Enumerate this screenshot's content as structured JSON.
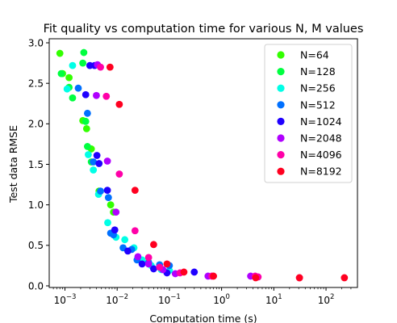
{
  "chart_data": {
    "type": "scatter",
    "title": "Fit quality vs computation time for various N, M values",
    "xlabel": "Computation time (s)",
    "ylabel": "Test data RMSE",
    "xscale": "log",
    "xlim": [
      0.0005,
      400
    ],
    "ylim": [
      -0.02,
      3.05
    ],
    "xticks": [
      {
        "value": 0.001,
        "base": "10",
        "exp": "−3"
      },
      {
        "value": 0.01,
        "base": "10",
        "exp": "−2"
      },
      {
        "value": 0.1,
        "base": "10",
        "exp": "−1"
      },
      {
        "value": 1,
        "base": "10",
        "exp": "0"
      },
      {
        "value": 10,
        "base": "10",
        "exp": "1"
      },
      {
        "value": 100,
        "base": "10",
        "exp": "2"
      }
    ],
    "yticks": [
      {
        "value": 0.0,
        "label": "0.0"
      },
      {
        "value": 0.5,
        "label": "0.5"
      },
      {
        "value": 1.0,
        "label": "1.0"
      },
      {
        "value": 1.5,
        "label": "1.5"
      },
      {
        "value": 2.0,
        "label": "2.0"
      },
      {
        "value": 2.5,
        "label": "2.5"
      },
      {
        "value": 3.0,
        "label": "3.0"
      }
    ],
    "grid": false,
    "legend_position": "upper right",
    "series": [
      {
        "name": "N=64",
        "color": "#33ff00",
        "points": [
          [
            0.0008,
            2.87
          ],
          [
            0.0009,
            2.62
          ],
          [
            0.0012,
            2.57
          ],
          [
            0.0022,
            2.04
          ],
          [
            0.0026,
            1.94
          ],
          [
            0.0032,
            1.69
          ],
          [
            0.0045,
            1.17
          ],
          [
            0.0075,
            1.0
          ],
          [
            0.0085,
            0.91
          ]
        ]
      },
      {
        "name": "N=128",
        "color": "#00ff40",
        "points": [
          [
            0.00085,
            2.62
          ],
          [
            0.0012,
            2.45
          ],
          [
            0.0014,
            2.32
          ],
          [
            0.0022,
            2.75
          ],
          [
            0.0023,
            2.88
          ],
          [
            0.0025,
            2.03
          ],
          [
            0.0027,
            1.72
          ],
          [
            0.0032,
            1.53
          ]
        ]
      },
      {
        "name": "N=256",
        "color": "#00ffe6",
        "points": [
          [
            0.0011,
            2.43
          ],
          [
            0.0014,
            2.72
          ],
          [
            0.0028,
            1.62
          ],
          [
            0.0035,
            1.43
          ],
          [
            0.0044,
            1.13
          ],
          [
            0.0066,
            0.78
          ],
          [
            0.0095,
            0.6
          ],
          [
            0.014,
            0.57
          ],
          [
            0.021,
            0.47
          ],
          [
            0.03,
            0.32
          ],
          [
            0.045,
            0.25
          ],
          [
            0.07,
            0.2
          ],
          [
            0.1,
            0.19
          ]
        ]
      },
      {
        "name": "N=512",
        "color": "#0070ff",
        "points": [
          [
            0.0018,
            2.44
          ],
          [
            0.0027,
            2.13
          ],
          [
            0.0035,
            1.53
          ],
          [
            0.0048,
            1.17
          ],
          [
            0.0068,
            1.09
          ],
          [
            0.0075,
            0.65
          ],
          [
            0.0085,
            0.63
          ],
          [
            0.013,
            0.47
          ],
          [
            0.019,
            0.45
          ],
          [
            0.024,
            0.32
          ],
          [
            0.04,
            0.29
          ],
          [
            0.065,
            0.26
          ],
          [
            0.1,
            0.25
          ]
        ]
      },
      {
        "name": "N=1024",
        "color": "#2000ff",
        "points": [
          [
            0.0025,
            2.36
          ],
          [
            0.003,
            2.72
          ],
          [
            0.0037,
            2.72
          ],
          [
            0.0041,
            1.61
          ],
          [
            0.0045,
            1.51
          ],
          [
            0.0065,
            1.18
          ],
          [
            0.009,
            0.69
          ],
          [
            0.016,
            0.43
          ],
          [
            0.03,
            0.27
          ],
          [
            0.05,
            0.21
          ],
          [
            0.09,
            0.16
          ],
          [
            0.3,
            0.17
          ]
        ]
      },
      {
        "name": "N=2048",
        "color": "#b000ff",
        "points": [
          [
            0.0042,
            2.73
          ],
          [
            0.004,
            2.35
          ],
          [
            0.0065,
            1.54
          ],
          [
            0.0095,
            0.91
          ],
          [
            0.025,
            0.36
          ],
          [
            0.04,
            0.27
          ],
          [
            0.075,
            0.2
          ],
          [
            0.13,
            0.15
          ],
          [
            0.55,
            0.12
          ],
          [
            3.6,
            0.12
          ]
        ]
      },
      {
        "name": "N=4096",
        "color": "#ff00a8",
        "points": [
          [
            0.0048,
            2.7
          ],
          [
            0.0062,
            2.34
          ],
          [
            0.011,
            1.38
          ],
          [
            0.022,
            0.68
          ],
          [
            0.04,
            0.35
          ],
          [
            0.065,
            0.23
          ],
          [
            0.16,
            0.16
          ],
          [
            0.65,
            0.12
          ],
          [
            4.4,
            0.12
          ],
          [
            5.0,
            0.11
          ],
          [
            31,
            0.1
          ]
        ]
      },
      {
        "name": "N=8192",
        "color": "#ff0020",
        "points": [
          [
            0.0073,
            2.7
          ],
          [
            0.011,
            2.24
          ],
          [
            0.022,
            1.18
          ],
          [
            0.05,
            0.51
          ],
          [
            0.09,
            0.27
          ],
          [
            0.19,
            0.17
          ],
          [
            0.7,
            0.12
          ],
          [
            4.5,
            0.1
          ],
          [
            31,
            0.1
          ],
          [
            225,
            0.1
          ]
        ]
      }
    ]
  }
}
